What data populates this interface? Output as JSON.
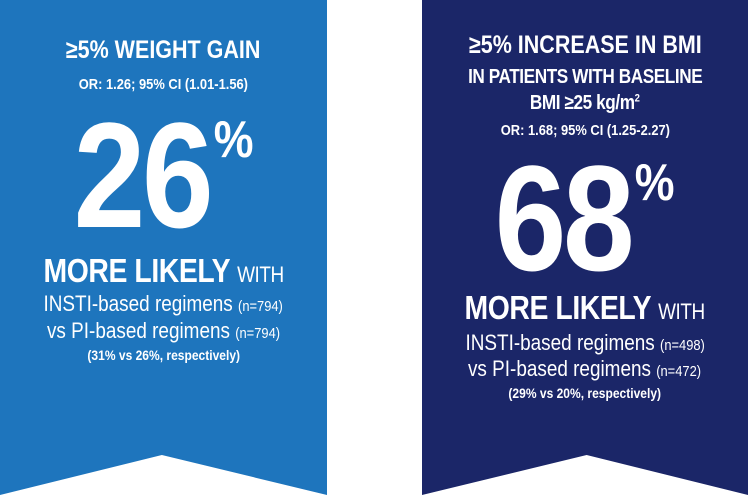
{
  "left": {
    "title": "≥5% WEIGHT GAIN",
    "or_line": "OR: 1.26; 95% CI (1.01-1.56)",
    "value": "26",
    "unit": "%",
    "more_likely": "MORE LIKELY",
    "with": "WITH",
    "insti": "INSTI-based regimens",
    "insti_n": "(n=794)",
    "pi": "vs PI-based regimens",
    "pi_n": "(n=794)",
    "note": "(31% vs 26%, respectively)",
    "color": "#1e75bd"
  },
  "right": {
    "title": "≥5% INCREASE IN BMI",
    "subtitle1": "IN PATIENTS WITH BASELINE",
    "subtitle2": "BMI ≥25 kg/m",
    "subtitle2_sup": "2",
    "or_line": "OR: 1.68; 95% CI (1.25-2.27)",
    "value": "68",
    "unit": "%",
    "more_likely": "MORE LIKELY",
    "with": "WITH",
    "insti": "INSTI-based regimens",
    "insti_n": "(n=498)",
    "pi": "vs PI-based regimens",
    "pi_n": "(n=472)",
    "note": "(29% vs 20%, respectively)",
    "color": "#1b2668"
  }
}
